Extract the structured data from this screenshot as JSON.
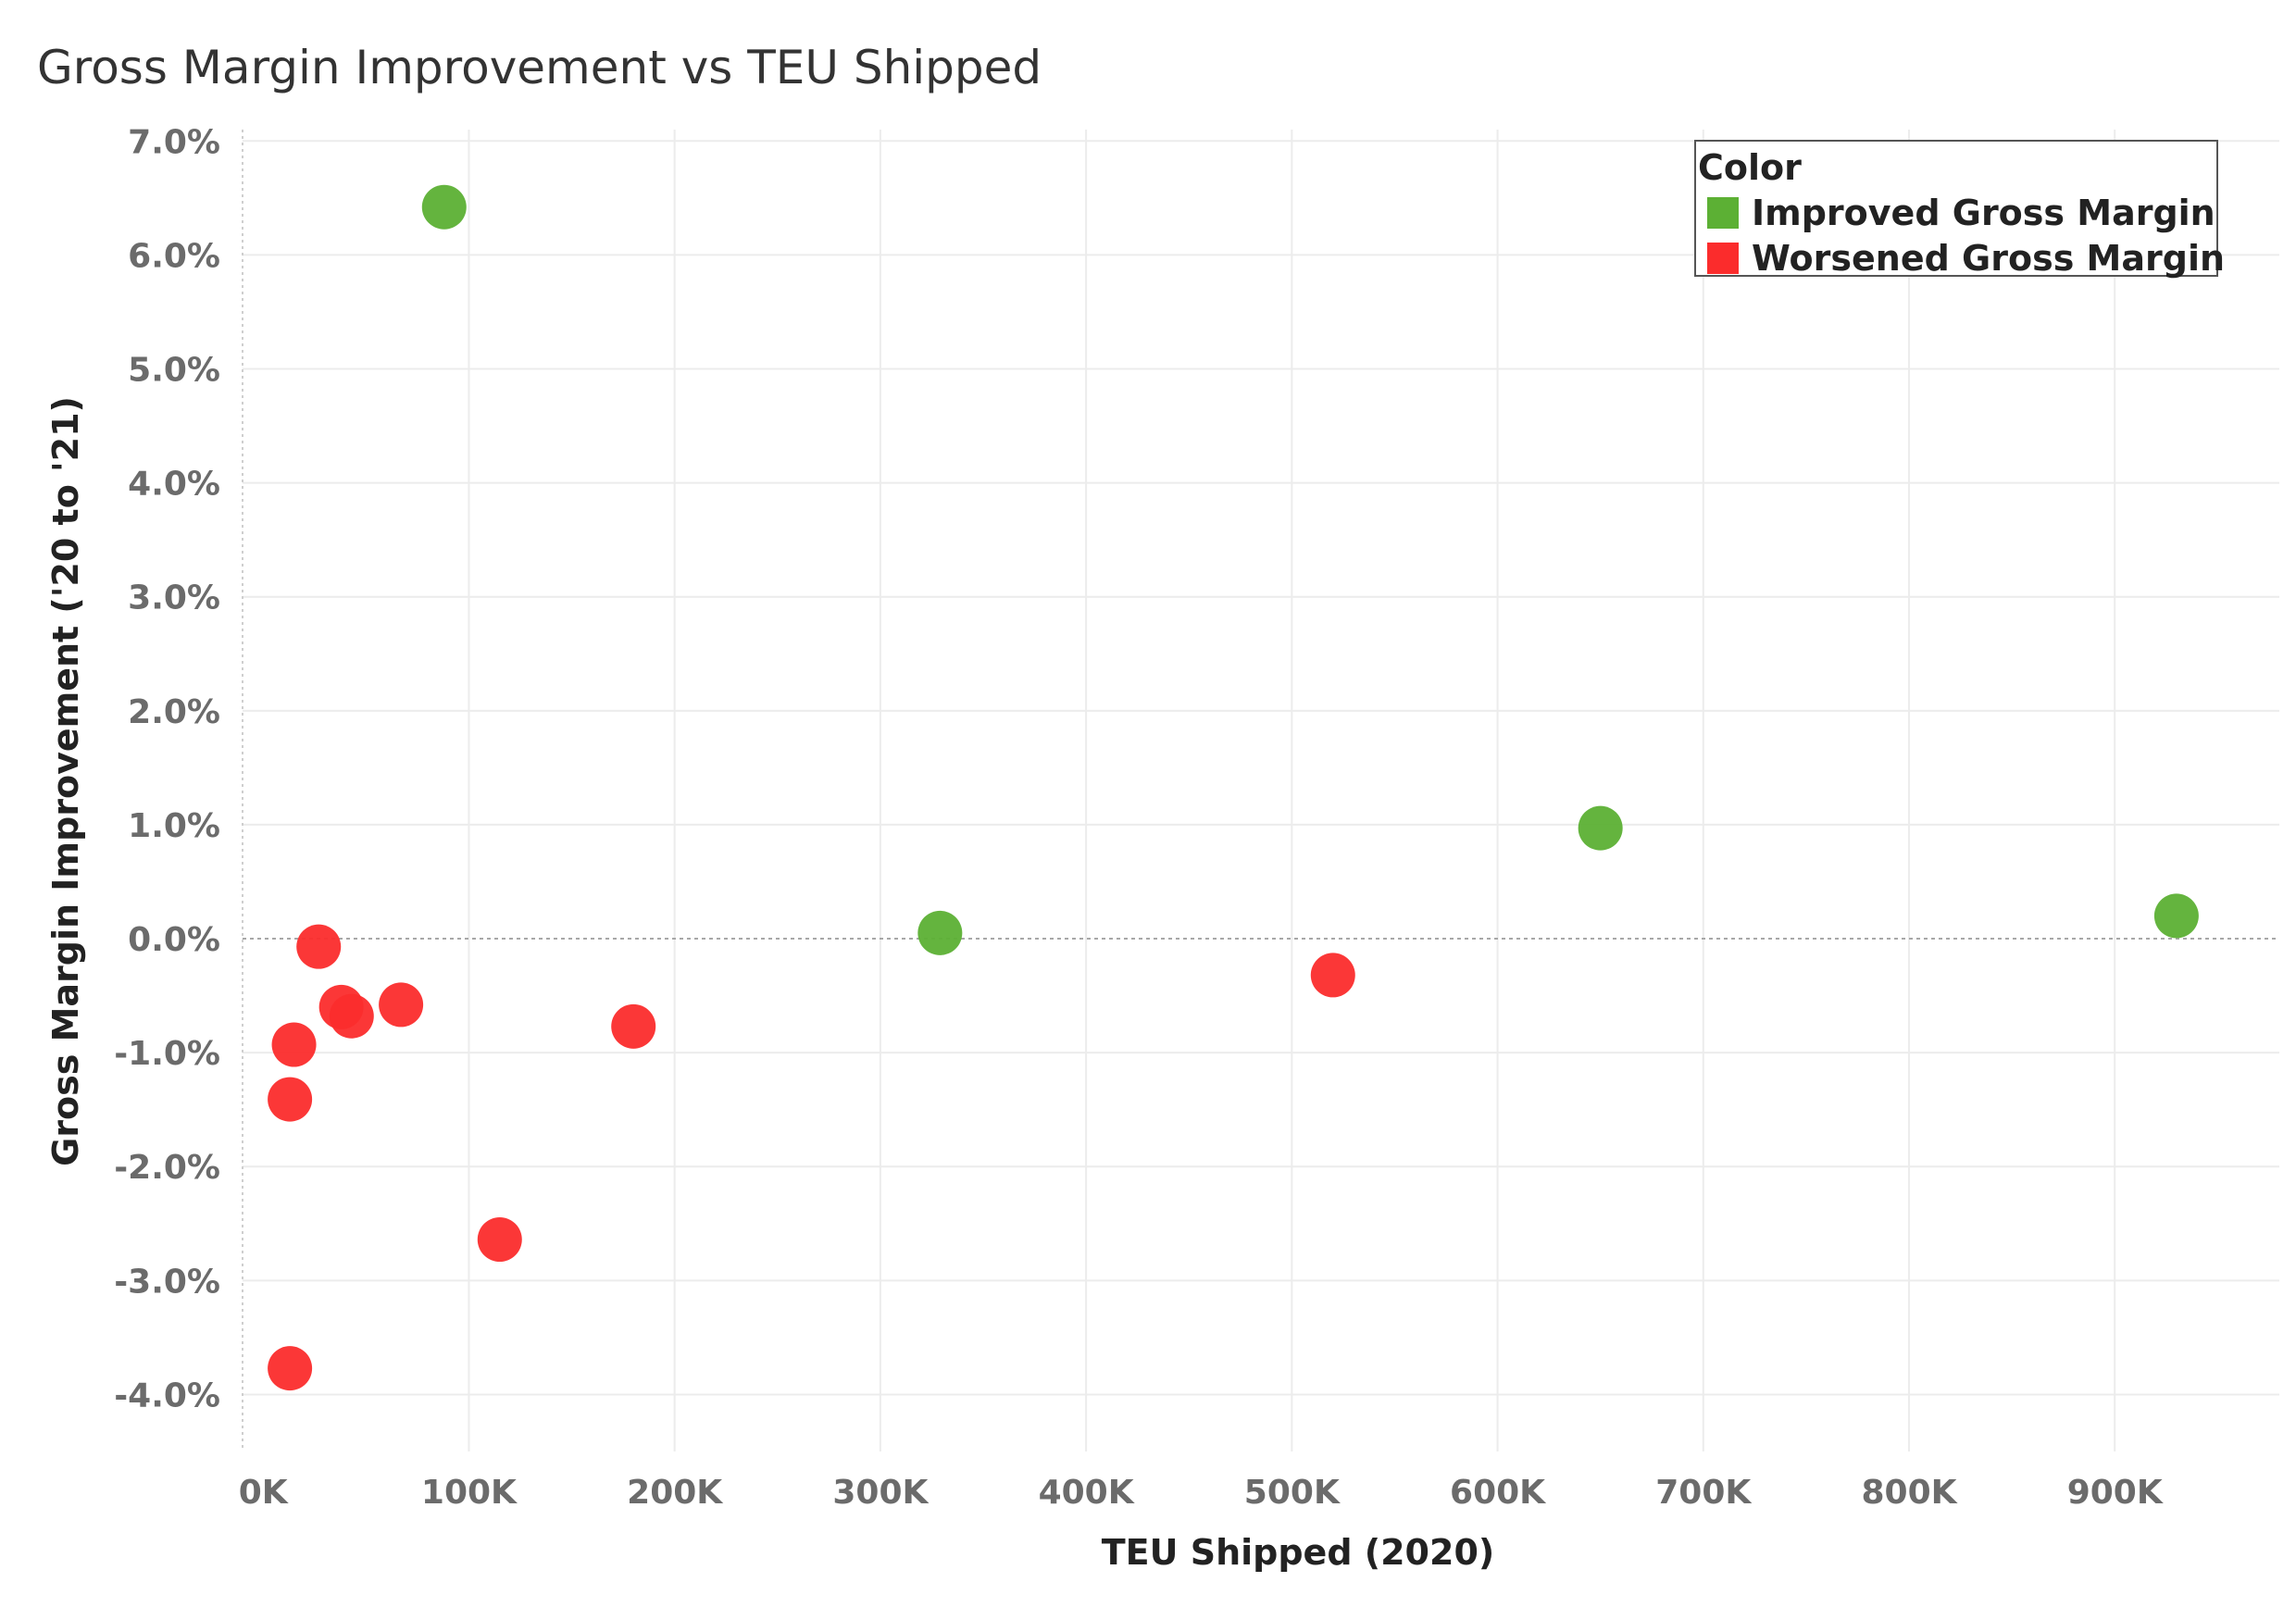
{
  "chart_data": {
    "type": "scatter",
    "title": "Gross Margin Improvement vs TEU Shipped",
    "xlabel": "TEU Shipped (2020)",
    "ylabel": "Gross Margin Improvement ('20 to '21)",
    "xlim": [
      -10000,
      980000
    ],
    "ylim": [
      -4.5,
      7.1
    ],
    "x_ticks": [
      {
        "value": 0,
        "label": "0K"
      },
      {
        "value": 100000,
        "label": "100K"
      },
      {
        "value": 200000,
        "label": "200K"
      },
      {
        "value": 300000,
        "label": "300K"
      },
      {
        "value": 400000,
        "label": "400K"
      },
      {
        "value": 500000,
        "label": "500K"
      },
      {
        "value": 600000,
        "label": "600K"
      },
      {
        "value": 700000,
        "label": "700K"
      },
      {
        "value": 800000,
        "label": "800K"
      },
      {
        "value": 900000,
        "label": "900K"
      }
    ],
    "y_ticks": [
      {
        "value": 7,
        "label": "7.0%"
      },
      {
        "value": 6,
        "label": "6.0%"
      },
      {
        "value": 5,
        "label": "5.0%"
      },
      {
        "value": 4,
        "label": "4.0%"
      },
      {
        "value": 3,
        "label": "3.0%"
      },
      {
        "value": 2,
        "label": "2.0%"
      },
      {
        "value": 1,
        "label": "1.0%"
      },
      {
        "value": 0,
        "label": "0.0%"
      },
      {
        "value": -1,
        "label": "-1.0%"
      },
      {
        "value": -2,
        "label": "-2.0%"
      },
      {
        "value": -3,
        "label": "-3.0%"
      },
      {
        "value": -4,
        "label": "-4.0%"
      }
    ],
    "grid": true,
    "zero_line": true,
    "legend": {
      "title": "Color",
      "position": "top-right",
      "entries": [
        {
          "label": "Improved Gross Margin",
          "color": "#5cb034"
        },
        {
          "label": "Worsened Gross Margin",
          "color": "#fb2c2c"
        }
      ]
    },
    "series": [
      {
        "name": "Improved Gross Margin",
        "color": "#5cb034",
        "points": [
          {
            "x": 88000,
            "y": 6.42
          },
          {
            "x": 329000,
            "y": 0.05
          },
          {
            "x": 650000,
            "y": 0.97
          },
          {
            "x": 930000,
            "y": 0.2
          }
        ]
      },
      {
        "name": "Worsened Gross Margin",
        "color": "#fb2c2c",
        "points": [
          {
            "x": 27000,
            "y": -0.07
          },
          {
            "x": 38000,
            "y": -0.6
          },
          {
            "x": 43000,
            "y": -0.68
          },
          {
            "x": 67000,
            "y": -0.58
          },
          {
            "x": 15000,
            "y": -0.93
          },
          {
            "x": 13000,
            "y": -1.41
          },
          {
            "x": 180000,
            "y": -0.77
          },
          {
            "x": 115000,
            "y": -2.64
          },
          {
            "x": 13000,
            "y": -3.77
          },
          {
            "x": 520000,
            "y": -0.32
          }
        ]
      }
    ]
  }
}
